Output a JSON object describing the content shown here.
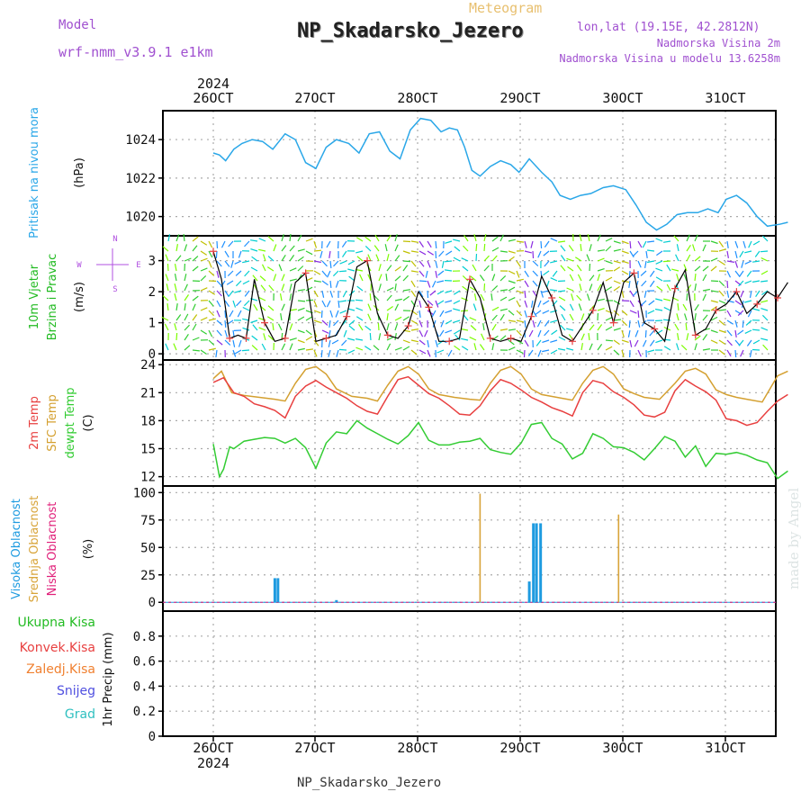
{
  "header": {
    "top_label": "Meteogram",
    "title": "NP_Skadarsko_Jezero",
    "model_label": "Model",
    "model_name": "wrf-nmm_v3.9.1 e1km",
    "lonlat": "lon,lat (19.15E, 42.2812N)",
    "altitude": "Nadmorska Visina 2m",
    "model_altitude": "Nadmorska Visina u modelu 13.6258m",
    "footer": "NP_Skadarsko_Jezero",
    "watermark": "made by Angel"
  },
  "colors": {
    "pressure": "#2aa7e8",
    "wind_label": "#22bb22",
    "temp2m": "#e84040",
    "sfc_temp": "#d4a030",
    "dewpt": "#33cc33",
    "cloud_high": "#1e9be0",
    "cloud_mid": "#d8a43a",
    "cloud_low": "#e0207a",
    "precip_total": "#22bb22",
    "precip_conv": "#e84040",
    "precip_frozen": "#f08030",
    "snow": "#5050e0",
    "grad": "#30c0c0",
    "compass": "#b050e0",
    "model_text": "#a050d0"
  },
  "chart_data": [
    {
      "type": "line",
      "panel": "pressure",
      "ylabel_lines": [
        "Pritisak na nivou mora",
        "(hPa)"
      ],
      "year": "2024",
      "x_ticks": [
        "26OCT",
        "27OCT",
        "28OCT",
        "29OCT",
        "30OCT",
        "31OCT"
      ],
      "ylim": [
        1019,
        1025.5
      ],
      "yticks": [
        1020,
        1022,
        1024
      ],
      "grid": true,
      "series": [
        {
          "x": [
            0,
            0.06,
            0.12,
            0.2,
            0.28,
            0.38,
            0.48,
            0.58,
            0.7,
            0.8,
            0.9,
            1.0,
            1.1,
            1.2,
            1.32,
            1.42,
            1.52,
            1.62,
            1.72,
            1.82,
            1.92,
            2.02,
            2.12,
            2.22,
            2.3,
            2.38,
            2.45,
            2.52,
            2.6,
            2.7,
            2.8,
            2.9,
            2.98,
            3.08,
            3.2,
            3.3,
            3.38,
            3.48,
            3.58,
            3.68,
            3.8,
            3.9,
            4.02,
            4.12,
            4.22,
            4.32,
            4.42,
            4.52,
            4.62,
            4.72,
            4.82,
            4.92,
            5.0,
            5.1,
            5.2,
            5.3,
            5.4,
            5.52,
            5.6
          ],
          "values": [
            1023.3,
            1023.2,
            1022.9,
            1023.5,
            1023.8,
            1024.0,
            1023.9,
            1023.5,
            1024.3,
            1024.0,
            1022.8,
            1022.5,
            1023.6,
            1024.0,
            1023.8,
            1023.3,
            1024.3,
            1024.4,
            1023.4,
            1023.0,
            1024.5,
            1025.1,
            1025.0,
            1024.4,
            1024.6,
            1024.5,
            1023.6,
            1022.4,
            1022.1,
            1022.6,
            1022.9,
            1022.7,
            1022.3,
            1023.0,
            1022.3,
            1021.8,
            1021.1,
            1020.9,
            1021.1,
            1021.2,
            1021.5,
            1021.6,
            1021.4,
            1020.6,
            1019.7,
            1019.3,
            1019.6,
            1020.1,
            1020.2,
            1020.2,
            1020.4,
            1020.2,
            1020.9,
            1021.1,
            1020.7,
            1020.0,
            1019.5,
            1019.6,
            1019.7
          ]
        }
      ]
    },
    {
      "type": "line",
      "panel": "wind",
      "ylabel_lines": [
        "10m Vjetar",
        "Brzina i Pravac",
        "(m/s)"
      ],
      "compass_labels": [
        "N",
        "E",
        "S",
        "W"
      ],
      "ylim": [
        -0.2,
        3.8
      ],
      "yticks": [
        0,
        1,
        2,
        3
      ],
      "grid": true,
      "series": [
        {
          "name": "wind speed",
          "x": [
            0,
            0.08,
            0.16,
            0.24,
            0.32,
            0.4,
            0.5,
            0.6,
            0.7,
            0.8,
            0.9,
            1.0,
            1.1,
            1.2,
            1.3,
            1.4,
            1.5,
            1.6,
            1.7,
            1.8,
            1.9,
            2.0,
            2.1,
            2.2,
            2.3,
            2.4,
            2.5,
            2.6,
            2.7,
            2.8,
            2.9,
            3.0,
            3.1,
            3.2,
            3.3,
            3.4,
            3.5,
            3.6,
            3.7,
            3.8,
            3.9,
            4.0,
            4.1,
            4.2,
            4.3,
            4.4,
            4.5,
            4.6,
            4.7,
            4.8,
            4.9,
            5.0,
            5.1,
            5.2,
            5.3,
            5.4,
            5.5,
            5.6
          ],
          "values": [
            3.3,
            2.4,
            0.5,
            0.6,
            0.5,
            2.4,
            1.0,
            0.4,
            0.5,
            2.3,
            2.6,
            0.4,
            0.5,
            0.6,
            1.2,
            2.8,
            3.0,
            1.3,
            0.6,
            0.5,
            0.9,
            2.0,
            1.5,
            0.4,
            0.4,
            0.5,
            2.4,
            1.8,
            0.5,
            0.4,
            0.5,
            0.4,
            1.2,
            2.5,
            1.8,
            0.6,
            0.4,
            0.9,
            1.4,
            2.3,
            1.0,
            2.3,
            2.6,
            1.0,
            0.8,
            0.4,
            2.1,
            2.7,
            0.6,
            0.8,
            1.4,
            1.6,
            2.0,
            1.3,
            1.6,
            2.0,
            1.8,
            2.3
          ]
        }
      ]
    },
    {
      "type": "line",
      "panel": "temperature",
      "ylabel_lines": [
        "2m Temp",
        "SFC Temp",
        "dewpt Temp",
        "(C)"
      ],
      "ylim": [
        11,
        24.5
      ],
      "yticks": [
        12,
        15,
        18,
        21,
        24
      ],
      "grid": true,
      "series": [
        {
          "name": "2m Temp",
          "x": [
            0,
            0.1,
            0.2,
            0.3,
            0.4,
            0.5,
            0.6,
            0.7,
            0.8,
            0.9,
            1.0,
            1.1,
            1.2,
            1.3,
            1.4,
            1.5,
            1.6,
            1.7,
            1.8,
            1.9,
            2.0,
            2.1,
            2.2,
            2.3,
            2.4,
            2.5,
            2.6,
            2.7,
            2.8,
            2.9,
            3.0,
            3.1,
            3.2,
            3.3,
            3.4,
            3.5,
            3.6,
            3.7,
            3.8,
            3.9,
            4.0,
            4.1,
            4.2,
            4.3,
            4.4,
            4.5,
            4.6,
            4.7,
            4.8,
            4.9,
            5.0,
            5.1,
            5.2,
            5.3,
            5.4,
            5.5,
            5.6
          ],
          "values": [
            22.1,
            22.6,
            21.0,
            20.6,
            19.8,
            19.5,
            19.1,
            18.3,
            20.6,
            21.7,
            22.3,
            21.6,
            21.0,
            20.4,
            19.6,
            19.0,
            18.7,
            20.6,
            22.4,
            22.7,
            21.8,
            20.9,
            20.4,
            19.6,
            18.7,
            18.6,
            19.6,
            21.2,
            22.4,
            22.0,
            21.3,
            20.5,
            20.0,
            19.4,
            19.0,
            18.5,
            21.0,
            22.3,
            22.0,
            21.1,
            20.5,
            19.7,
            18.6,
            18.4,
            18.9,
            21.2,
            22.4,
            21.7,
            21.1,
            20.2,
            18.2,
            18.0,
            17.5,
            17.8,
            19.0,
            20.1,
            20.8
          ]
        },
        {
          "name": "SFC Temp",
          "x": [
            0,
            0.08,
            0.18,
            0.3,
            0.45,
            0.6,
            0.7,
            0.8,
            0.9,
            1.0,
            1.1,
            1.2,
            1.35,
            1.5,
            1.6,
            1.7,
            1.8,
            1.9,
            2.0,
            2.1,
            2.2,
            2.35,
            2.5,
            2.6,
            2.7,
            2.8,
            2.9,
            3.0,
            3.1,
            3.2,
            3.35,
            3.5,
            3.6,
            3.7,
            3.8,
            3.9,
            4.0,
            4.1,
            4.2,
            4.35,
            4.5,
            4.6,
            4.7,
            4.8,
            4.9,
            5.0,
            5.1,
            5.2,
            5.35,
            5.5,
            5.6
          ],
          "values": [
            22.5,
            23.3,
            21.0,
            20.7,
            20.5,
            20.3,
            20.1,
            22.0,
            23.5,
            23.8,
            23.0,
            21.4,
            20.6,
            20.4,
            20.1,
            21.8,
            23.3,
            23.8,
            23.0,
            21.4,
            20.8,
            20.5,
            20.3,
            20.2,
            22.0,
            23.4,
            23.8,
            23.0,
            21.4,
            20.8,
            20.5,
            20.2,
            22.0,
            23.4,
            23.8,
            23.0,
            21.4,
            20.9,
            20.5,
            20.3,
            22.0,
            23.3,
            23.6,
            23.0,
            21.3,
            20.8,
            20.5,
            20.3,
            20.0,
            22.8,
            23.3
          ]
        },
        {
          "name": "dewpt Temp",
          "x": [
            0,
            0.06,
            0.1,
            0.16,
            0.2,
            0.3,
            0.4,
            0.5,
            0.6,
            0.7,
            0.8,
            0.9,
            1.0,
            1.1,
            1.2,
            1.3,
            1.4,
            1.5,
            1.6,
            1.7,
            1.8,
            1.9,
            2.0,
            2.1,
            2.2,
            2.3,
            2.4,
            2.5,
            2.6,
            2.7,
            2.8,
            2.9,
            3.0,
            3.1,
            3.2,
            3.3,
            3.4,
            3.5,
            3.6,
            3.7,
            3.8,
            3.9,
            4.0,
            4.1,
            4.2,
            4.3,
            4.4,
            4.5,
            4.6,
            4.7,
            4.8,
            4.9,
            5.0,
            5.1,
            5.2,
            5.3,
            5.4,
            5.5,
            5.6
          ],
          "values": [
            15.5,
            12.0,
            12.8,
            15.2,
            15.0,
            15.8,
            16.0,
            16.2,
            16.1,
            15.6,
            16.1,
            15.1,
            12.9,
            15.6,
            16.8,
            16.6,
            18.0,
            17.2,
            16.6,
            16.0,
            15.5,
            16.4,
            17.8,
            15.9,
            15.4,
            15.4,
            15.7,
            15.8,
            16.1,
            14.9,
            14.6,
            14.4,
            15.6,
            17.6,
            17.8,
            16.1,
            15.5,
            13.9,
            14.5,
            16.6,
            16.1,
            15.2,
            15.1,
            14.6,
            13.8,
            15.0,
            16.3,
            15.8,
            14.1,
            15.3,
            13.1,
            14.5,
            14.4,
            14.6,
            14.3,
            13.8,
            13.5,
            11.8,
            12.6
          ]
        }
      ]
    },
    {
      "type": "bar",
      "panel": "cloud",
      "ylabel_lines": [
        "Visoka Oblacnost",
        "Srednja Oblacnost",
        "Niska Oblacnost",
        "(%)"
      ],
      "ylim": [
        -8,
        106
      ],
      "yticks": [
        0,
        25,
        50,
        75,
        100
      ],
      "grid": true,
      "series": [
        {
          "name": "Visoka Oblacnost",
          "x": [
            0.6,
            0.63,
            1.2,
            3.08,
            3.12,
            3.15,
            3.19
          ],
          "values": [
            22,
            22,
            2,
            19,
            72,
            72,
            72
          ]
        },
        {
          "name": "Srednja Oblacnost",
          "x": [
            2.6,
            3.95
          ],
          "values": [
            99,
            80
          ]
        },
        {
          "name": "Niska Oblacnost",
          "x": [],
          "values": []
        }
      ]
    },
    {
      "type": "bar",
      "panel": "precip",
      "ylabel_lines": [
        "1hr Precip (mm)"
      ],
      "legend_labels": [
        "Ukupna Kisa",
        "Konvek.Kisa",
        "Zaledj.Kisa",
        "Snijeg",
        "Grad"
      ],
      "ylim": [
        0,
        1.0
      ],
      "yticks": [
        0,
        0.2,
        0.4,
        0.6,
        0.8
      ],
      "grid": true,
      "series": [
        {
          "name": "Ukupna Kisa",
          "x": [],
          "values": []
        }
      ]
    }
  ]
}
